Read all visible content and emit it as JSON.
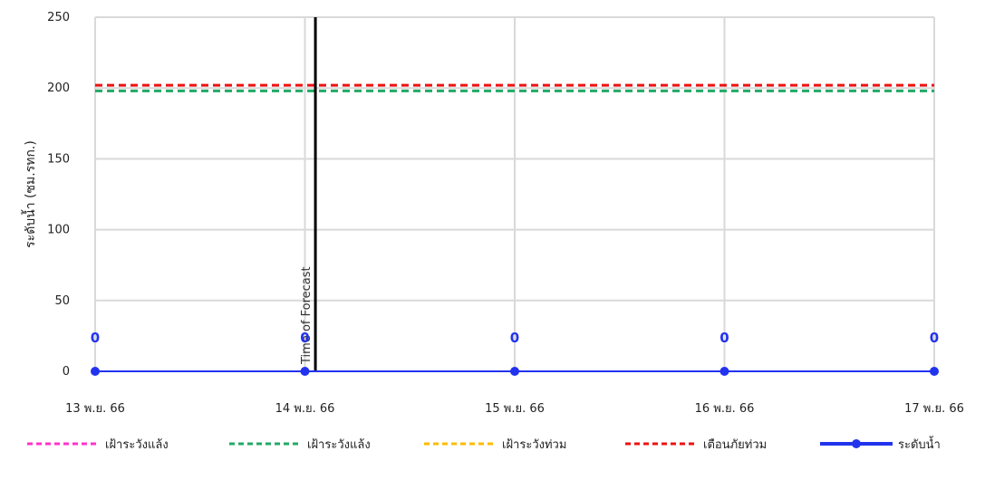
{
  "chart_data": {
    "type": "line",
    "title": "",
    "xlabel": "",
    "ylabel": "ระดับน้ำ (ซม.รทก.)",
    "ylim": [
      0,
      250
    ],
    "yticks": [
      0,
      50,
      100,
      150,
      200,
      250
    ],
    "grid": true,
    "legend_position": "bottom",
    "categories": [
      "13 พ.ย. 66",
      "14 พ.ย. 66",
      "15 พ.ย. 66",
      "16 พ.ย. 66",
      "17 พ.ย. 66"
    ],
    "thresholds": [
      {
        "name": "เฝ้าระวังแล้ง",
        "value": null,
        "color": "#ff33cc",
        "style": "dashed"
      },
      {
        "name": "เฝ้าระวังแล้ง",
        "value": 198,
        "color": "#22aa66",
        "style": "dashed"
      },
      {
        "name": "เฝ้าระวังท่วม",
        "value": null,
        "color": "#ffbb00",
        "style": "dashed"
      },
      {
        "name": "เตือนภัยท่วม",
        "value": 202,
        "color": "#ee1111",
        "style": "dashed"
      }
    ],
    "series": [
      {
        "name": "ระดับน้ำ",
        "values": [
          0,
          0,
          0,
          0,
          0
        ],
        "color": "#2233ee",
        "data_labels": [
          "0",
          "0",
          "0",
          "0",
          "0"
        ]
      }
    ],
    "annotations": [
      {
        "text": "Time of Forecast",
        "x_index": 1.05,
        "orientation": "vertical"
      }
    ]
  }
}
